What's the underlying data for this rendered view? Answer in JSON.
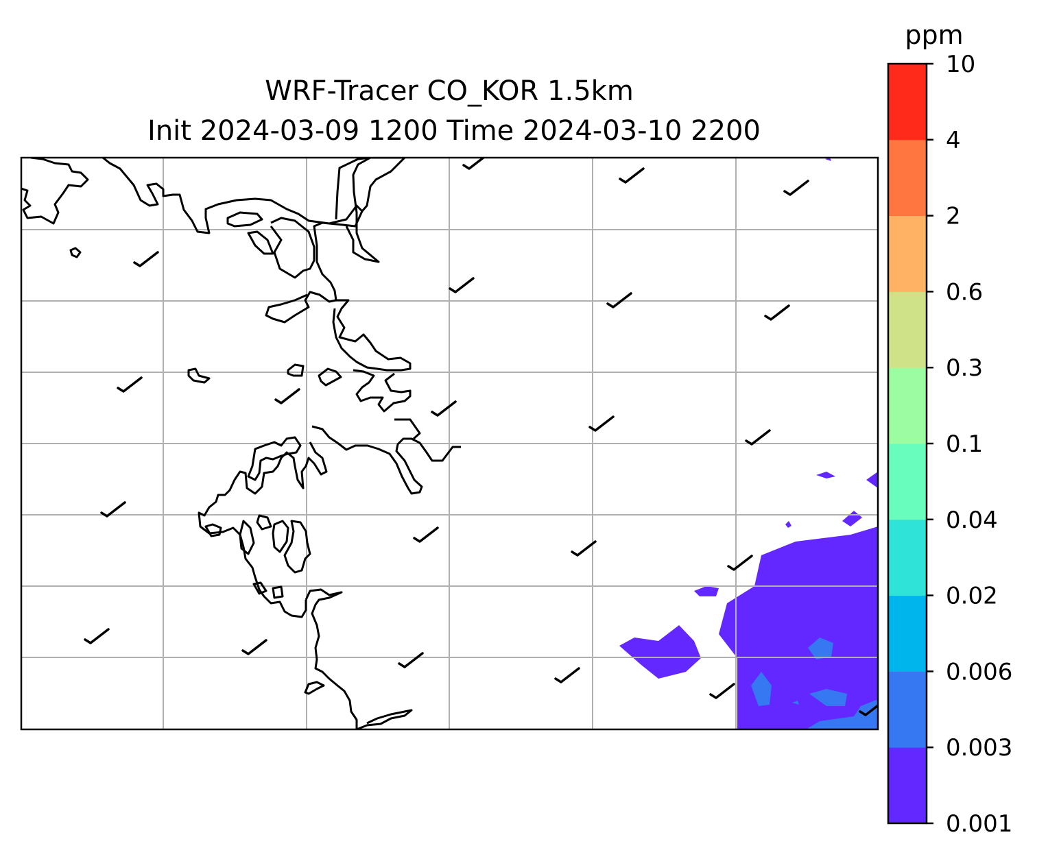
{
  "title": {
    "line1": "WRF-Tracer CO_KOR 1.5km",
    "line2": "Init 2024-03-09 1200 Time 2024-03-10 2200"
  },
  "colorbar": {
    "unit": "ppm",
    "levels": [
      "0.001",
      "0.003",
      "0.006",
      "0.02",
      "0.04",
      "0.1",
      "0.3",
      "0.6",
      "2",
      "4",
      "10"
    ],
    "colors": [
      "#6228ff",
      "#3677f2",
      "#00b4ec",
      "#30e3d8",
      "#68fdbd",
      "#9bfca1",
      "#d0e287",
      "#ffb264",
      "#ff7640",
      "#ff2a1a"
    ]
  },
  "map": {
    "field": "CO tracer concentration (shaded)",
    "gridlines": true,
    "wind_barbs": "calm-to-light winds shown as barbs"
  }
}
